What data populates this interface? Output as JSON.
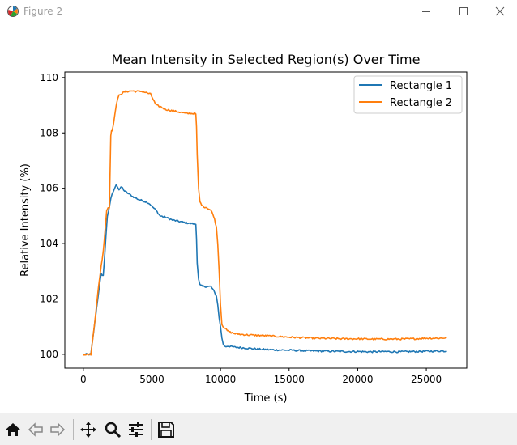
{
  "window": {
    "title": "Figure 2",
    "icons": [
      "matplotlib-app-icon",
      "minimize-icon",
      "maximize-icon",
      "close-icon"
    ]
  },
  "toolbar": {
    "icons": [
      "home-icon",
      "back-icon",
      "forward-icon",
      "pan-icon",
      "zoom-icon",
      "configure-subplots-icon",
      "save-icon"
    ]
  },
  "chart_data": {
    "type": "line",
    "title": "Mean Intensity in Selected Region(s) Over Time",
    "xlabel": "Time (s)",
    "ylabel": "Relative Intensity (%)",
    "xlim": [
      -1350,
      27950
    ],
    "ylim": [
      99.5,
      110.2
    ],
    "xticks": [
      0,
      5000,
      10000,
      15000,
      20000,
      25000
    ],
    "xtick_labels": [
      "0",
      "5000",
      "10000",
      "15000",
      "20000",
      "25000"
    ],
    "yticks": [
      100,
      102,
      104,
      106,
      108,
      110
    ],
    "ytick_labels": [
      "100",
      "102",
      "104",
      "106",
      "108",
      "110"
    ],
    "grid": false,
    "legend_position": "top-right",
    "series": [
      {
        "name": "Rectangle 1",
        "color": "#1f77b4",
        "x": [
          0,
          300,
          550,
          700,
          900,
          1100,
          1300,
          1450,
          1550,
          1650,
          1750,
          1900,
          2000,
          2100,
          2200,
          2300,
          2400,
          2600,
          2800,
          3000,
          3300,
          3600,
          4000,
          4300,
          4600,
          4800,
          5000,
          5300,
          5600,
          6000,
          6500,
          7000,
          7500,
          8000,
          8200,
          8250,
          8300,
          8400,
          8500,
          8700,
          9000,
          9300,
          9500,
          9700,
          9800,
          9900,
          10000,
          10100,
          10200,
          10300,
          10400,
          10500,
          11000,
          11500,
          12000,
          13000,
          14000,
          15000,
          16000,
          17000,
          18000,
          19000,
          20000,
          21000,
          22000,
          23000,
          24000,
          25000,
          26000,
          26500
        ],
        "y": [
          100.0,
          100.0,
          100.0,
          100.6,
          101.4,
          102.2,
          102.9,
          102.85,
          103.5,
          104.3,
          105.0,
          105.3,
          105.6,
          105.8,
          105.9,
          106.0,
          106.15,
          105.95,
          106.05,
          105.9,
          105.8,
          105.7,
          105.6,
          105.55,
          105.5,
          105.45,
          105.35,
          105.2,
          105.0,
          104.95,
          104.85,
          104.8,
          104.75,
          104.72,
          104.7,
          104.2,
          103.3,
          102.7,
          102.5,
          102.45,
          102.45,
          102.45,
          102.3,
          102.1,
          101.8,
          101.3,
          101.0,
          100.6,
          100.35,
          100.3,
          100.28,
          100.3,
          100.26,
          100.24,
          100.22,
          100.18,
          100.16,
          100.15,
          100.13,
          100.12,
          100.11,
          100.1,
          100.1,
          100.09,
          100.1,
          100.09,
          100.1,
          100.11,
          100.12,
          100.11
        ]
      },
      {
        "name": "Rectangle 2",
        "color": "#ff7f0e",
        "x": [
          0,
          300,
          550,
          700,
          900,
          1100,
          1300,
          1450,
          1600,
          1700,
          1800,
          1900,
          2000,
          2050,
          2100,
          2200,
          2300,
          2400,
          2500,
          2600,
          2700,
          2900,
          3100,
          3300,
          3500,
          3800,
          4000,
          4300,
          4600,
          4900,
          5100,
          5300,
          5600,
          6000,
          6500,
          7000,
          7500,
          8000,
          8200,
          8250,
          8300,
          8400,
          8500,
          8700,
          9000,
          9300,
          9500,
          9700,
          9800,
          9900,
          10000,
          10100,
          10200,
          10300,
          10400,
          10500,
          10700,
          11000,
          11500,
          12000,
          13000,
          14000,
          15000,
          16000,
          17000,
          18000,
          19000,
          20000,
          21000,
          22000,
          23000,
          24000,
          25000,
          26000,
          26500
        ],
        "y": [
          100.0,
          100.0,
          100.0,
          100.6,
          101.5,
          102.4,
          103.2,
          103.7,
          104.6,
          105.2,
          105.3,
          105.3,
          107.9,
          108.1,
          108.1,
          108.3,
          108.7,
          109.0,
          109.2,
          109.35,
          109.4,
          109.45,
          109.5,
          109.5,
          109.52,
          109.5,
          109.5,
          109.5,
          109.45,
          109.4,
          109.2,
          109.0,
          108.95,
          108.85,
          108.8,
          108.75,
          108.7,
          108.7,
          108.68,
          108.2,
          107.2,
          106.0,
          105.5,
          105.35,
          105.3,
          105.2,
          105.0,
          104.6,
          104.0,
          103.0,
          101.8,
          101.1,
          101.0,
          100.95,
          100.9,
          100.85,
          100.8,
          100.75,
          100.72,
          100.7,
          100.68,
          100.65,
          100.62,
          100.6,
          100.58,
          100.57,
          100.56,
          100.56,
          100.55,
          100.55,
          100.55,
          100.56,
          100.58,
          100.58,
          100.6
        ]
      }
    ]
  }
}
